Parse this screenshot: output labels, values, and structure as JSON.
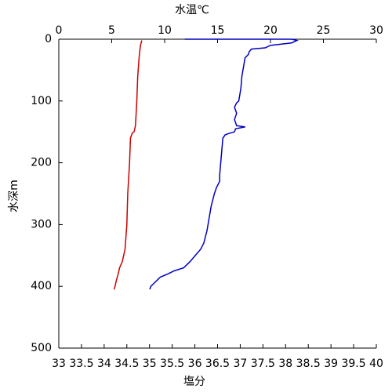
{
  "chart_data": {
    "type": "line",
    "x2label": "水温℃",
    "x2label_color": "#1a1acc",
    "xlabel": "塩分",
    "xlabel_color": "#cc0000",
    "ylabel": "水深m",
    "xlim": [
      33,
      40
    ],
    "xticks": [
      33,
      33.5,
      34,
      34.5,
      35,
      35.5,
      36,
      36.5,
      37,
      37.5,
      38,
      38.5,
      39,
      39.5,
      40
    ],
    "x2lim": [
      0,
      30
    ],
    "x2ticks": [
      0,
      5,
      10,
      15,
      20,
      25,
      30
    ],
    "ylim": [
      0,
      500
    ],
    "yticks": [
      0,
      100,
      200,
      300,
      400,
      500
    ],
    "y_inverted": true,
    "series": [
      {
        "color": "#0000c0",
        "axis": "x2",
        "x": [
          11.9,
          22.0,
          22.5,
          22.0,
          20.0,
          19.5,
          18.2,
          18.0,
          17.9,
          17.6,
          17.5,
          17.3,
          17.2,
          17.0,
          16.8,
          16.6,
          16.8,
          16.6,
          16.8,
          17.6,
          16.7,
          16.6,
          16.0,
          15.7,
          15.6,
          15.5,
          15.4,
          15.3,
          15.2,
          15.2,
          14.9,
          14.7,
          14.4,
          14.2,
          14.0,
          13.7,
          13.4,
          12.9,
          12.4,
          11.8,
          10.9,
          10.3,
          9.6,
          9.3,
          9.0,
          8.7,
          8.6
        ],
        "y": [
          0,
          0,
          2,
          6,
          10,
          14,
          16,
          20,
          25,
          30,
          40,
          60,
          80,
          100,
          103,
          110,
          120,
          130,
          140,
          142,
          145,
          150,
          153,
          155,
          158,
          160,
          180,
          200,
          220,
          230,
          240,
          250,
          270,
          290,
          310,
          330,
          340,
          350,
          360,
          370,
          375,
          380,
          385,
          390,
          395,
          400,
          405
        ]
      },
      {
        "color": "#cc0000",
        "axis": "x",
        "x": [
          34.83,
          34.8,
          34.77,
          34.74,
          34.72,
          34.69,
          34.66,
          34.62,
          34.58,
          34.56,
          34.52,
          34.5,
          34.46,
          34.4,
          34.34,
          34.31,
          34.27,
          34.24,
          34.22
        ],
        "y": [
          2,
          10,
          30,
          60,
          100,
          140,
          150,
          152,
          160,
          200,
          250,
          300,
          340,
          360,
          370,
          380,
          390,
          400,
          405
        ]
      }
    ]
  }
}
